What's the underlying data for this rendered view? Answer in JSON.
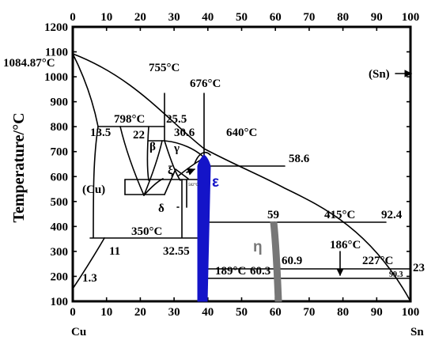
{
  "axes": {
    "ylabel": "Temperature/°C",
    "x_ticks": [
      "0",
      "10",
      "20",
      "30",
      "40",
      "50",
      "60",
      "70",
      "80",
      "90",
      "100"
    ],
    "y_ticks": [
      "100",
      "200",
      "300",
      "400",
      "500",
      "600",
      "700",
      "800",
      "900",
      "1000",
      "1100",
      "1200"
    ],
    "x_range": [
      0,
      100
    ],
    "y_range": [
      100,
      1200
    ],
    "left_end_label": "Cu",
    "right_end_label": "Sn"
  },
  "labels": {
    "cu_melt": "1084.87°C",
    "t755": "755°C",
    "t676": "676°C",
    "t798": "798°C",
    "v25_5": "25.5",
    "v13_5": "13.5",
    "v22": "22",
    "v30_6": "30.6",
    "t640": "640°C",
    "beta": "β",
    "gamma": "γ",
    "v58_6": "58.6",
    "xi": "ξ",
    "small582": "582°C",
    "cu_phase": "(Cu)",
    "epsilon": "ε",
    "delta": "δ",
    "v59": "59",
    "t415": "415°C",
    "v92_4": "92.4",
    "t350": "350°C",
    "eta": "η",
    "v11": "11",
    "v32_55": "32.55",
    "t186": "186°C",
    "v60_9": "60.9",
    "t227": "227°C",
    "v23": "23",
    "t189": "189°C",
    "v60_3": "60.3",
    "v99_3": "99.3",
    "v1_3": "1.3",
    "sn_phase": "(Sn)"
  },
  "colors": {
    "epsilon_band": "#1414c8",
    "eta_band": "#777777",
    "line": "#000000"
  }
}
